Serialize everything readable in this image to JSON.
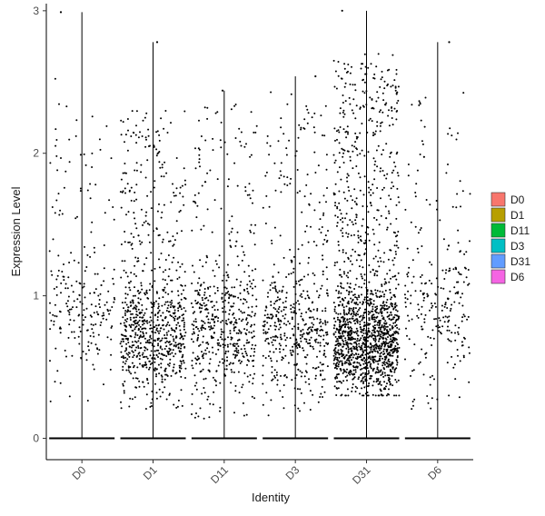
{
  "chart_data": {
    "type": "scatter",
    "subtype": "violin-jitter",
    "title": "",
    "xlabel": "Identity",
    "ylabel": "Expression Level",
    "categories": [
      "D0",
      "D1",
      "D11",
      "D3",
      "D31",
      "D6"
    ],
    "ylim": [
      -0.15,
      3.05
    ],
    "yticks": [
      0,
      1,
      2,
      3
    ],
    "grid": false,
    "legend": {
      "position": "right",
      "entries": [
        {
          "label": "D0",
          "color": "#F8766D"
        },
        {
          "label": "D1",
          "color": "#B79F00"
        },
        {
          "label": "D11",
          "color": "#00BA38"
        },
        {
          "label": "D3",
          "color": "#00BFC4"
        },
        {
          "label": "D31",
          "color": "#619CFF"
        },
        {
          "label": "D6",
          "color": "#F564E3"
        }
      ]
    },
    "series": [
      {
        "category": "D0",
        "max": 2.99,
        "nonzero_points": 230,
        "nonzero_range": [
          0.25,
          2.55
        ]
      },
      {
        "category": "D1",
        "max": 2.78,
        "nonzero_points": 820,
        "nonzero_range": [
          0.18,
          2.3
        ]
      },
      {
        "category": "D11",
        "max": 2.44,
        "nonzero_points": 560,
        "nonzero_range": [
          0.13,
          2.35
        ]
      },
      {
        "category": "D3",
        "max": 2.54,
        "nonzero_points": 520,
        "nonzero_range": [
          0.14,
          2.45
        ]
      },
      {
        "category": "D31",
        "max": 3.0,
        "nonzero_points": 1600,
        "nonzero_range": [
          0.3,
          2.7
        ]
      },
      {
        "category": "D6",
        "max": 2.78,
        "nonzero_points": 260,
        "nonzero_range": [
          0.2,
          2.45
        ]
      }
    ]
  }
}
